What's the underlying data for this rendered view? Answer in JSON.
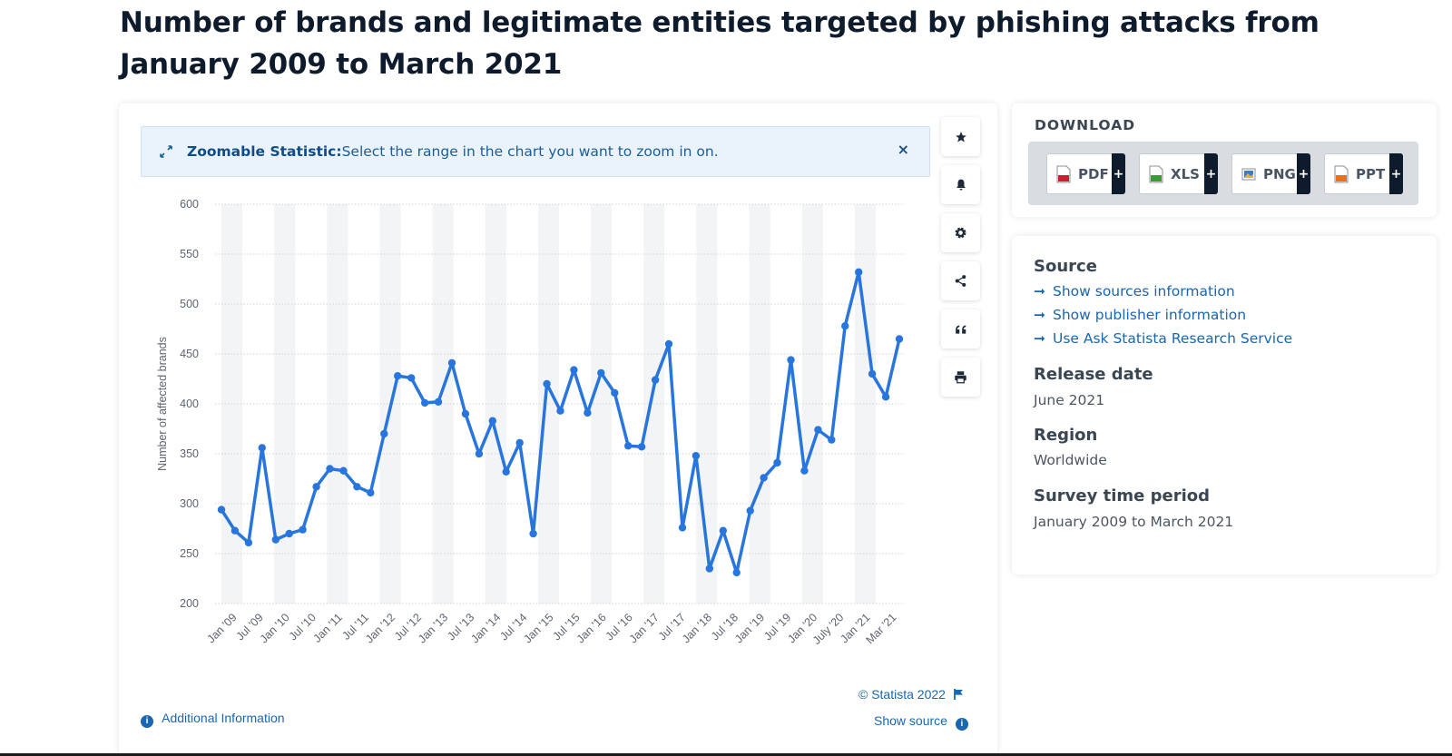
{
  "page": {
    "title": "Number of brands and legitimate entities targeted by phishing attacks from January 2009 to March 2021"
  },
  "zoom_banner": {
    "label": "Zoomable Statistic:",
    "text": "Select the range in the chart you want to zoom in on.",
    "close": "×"
  },
  "toolbar": [
    "star-icon",
    "bell-icon",
    "gear-icon",
    "share-icon",
    "quote-icon",
    "print-icon"
  ],
  "chart_data": {
    "type": "line",
    "title": "",
    "xlabel": "",
    "ylabel": "Number of affected brands",
    "ylim": [
      200,
      600
    ],
    "yticks": [
      200,
      250,
      300,
      350,
      400,
      450,
      500,
      550,
      600
    ],
    "grid": true,
    "x_tick_labels": [
      "Jan '09",
      "Jul '09",
      "Jan '10",
      "Jul '10",
      "Jan '11",
      "Jul '11",
      "Jan '12",
      "Jul '12",
      "Jan '13",
      "Jul '13",
      "Jan '14",
      "Jul '14",
      "Jan '15",
      "Jul '15",
      "Jan '16",
      "Jul '16",
      "Jan '17",
      "Jul '17",
      "Jan '18",
      "Jul '18",
      "Jan '19",
      "Jul '19",
      "Jan '20",
      "July '20",
      "Jan '21",
      "Mar '21"
    ],
    "series": [
      {
        "name": "Number of affected brands",
        "color": "#2876dd",
        "values": [
          294,
          273,
          261,
          356,
          264,
          270,
          274,
          317,
          335,
          333,
          317,
          311,
          370,
          428,
          426,
          401,
          402,
          441,
          390,
          350,
          383,
          332,
          361,
          270,
          420,
          393,
          434,
          391,
          431,
          411,
          358,
          357,
          424,
          460,
          276,
          348,
          235,
          273,
          231,
          293,
          326,
          341,
          444,
          333,
          374,
          364,
          478,
          532,
          430,
          407,
          465
        ]
      }
    ]
  },
  "footer": {
    "credit": "© Statista 2022",
    "show_source": "Show source",
    "additional_info": "Additional Information"
  },
  "download": {
    "title": "DOWNLOAD",
    "buttons": [
      {
        "label": "PDF",
        "color": "#c8202f"
      },
      {
        "label": "XLS",
        "color": "#3d9b35"
      },
      {
        "label": "PNG",
        "color": "#3a7cc4"
      },
      {
        "label": "PPT",
        "color": "#e8711f"
      }
    ],
    "plus": "+"
  },
  "info": {
    "source_heading": "Source",
    "links": [
      "Show sources information",
      "Show publisher information",
      "Use Ask Statista Research Service"
    ],
    "release_heading": "Release date",
    "release_value": "June 2021",
    "region_heading": "Region",
    "region_value": "Worldwide",
    "period_heading": "Survey time period",
    "period_value": "January 2009 to March 2021"
  }
}
